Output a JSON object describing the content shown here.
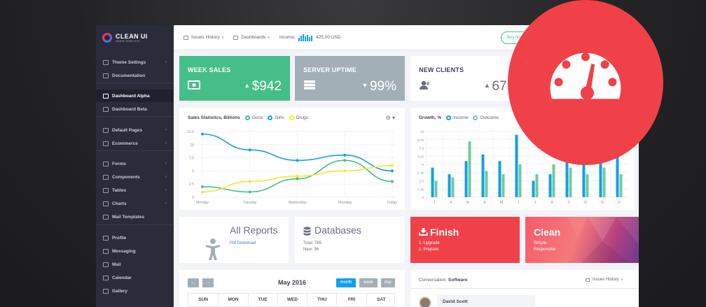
{
  "brand": {
    "title": "CLEAN UI",
    "subtitle": "ADMIN TEMPLATE"
  },
  "sidebar": {
    "items": [
      {
        "label": "Theme Settings",
        "arrow": true,
        "icon": "gear-icon"
      },
      {
        "label": "Documentation",
        "arrow": false,
        "icon": "book-icon"
      },
      {
        "label": "Dashboard Alpha",
        "arrow": false,
        "icon": "home-icon",
        "active": true
      },
      {
        "label": "Dashboard Beta",
        "arrow": false,
        "icon": "home-icon"
      },
      {
        "label": "Default Pages",
        "arrow": true,
        "icon": "pages-icon"
      },
      {
        "label": "Ecommerce",
        "arrow": true,
        "icon": "cart-icon"
      },
      {
        "label": "Forms",
        "arrow": true,
        "icon": "form-icon"
      },
      {
        "label": "Components",
        "arrow": true,
        "icon": "puzzle-icon"
      },
      {
        "label": "Tables",
        "arrow": true,
        "icon": "table-icon"
      },
      {
        "label": "Charts",
        "arrow": true,
        "icon": "chart-icon"
      },
      {
        "label": "Mail Templates",
        "arrow": false,
        "icon": "mail-icon"
      },
      {
        "label": "Profile",
        "arrow": false,
        "icon": "profile-icon"
      },
      {
        "label": "Messaging",
        "arrow": false,
        "icon": "message-icon"
      },
      {
        "label": "Mail",
        "arrow": false,
        "icon": "mail-icon"
      },
      {
        "label": "Calendar",
        "arrow": false,
        "icon": "calendar-icon"
      },
      {
        "label": "Gallery",
        "arrow": false,
        "icon": "gallery-icon"
      }
    ]
  },
  "topbar": {
    "issues": "Issues History",
    "dashboards": "Dashboards",
    "income_label": "Income:",
    "income_value": "425,00 USD",
    "buy_now": "Buy Now"
  },
  "stats": {
    "week_sales": {
      "title": "WEEK SALES",
      "value": "$942",
      "color": "#46be8a"
    },
    "server_uptime": {
      "title": "SERVER UPTIME",
      "value": "99%",
      "color": "#a3afb7"
    },
    "new_clients": {
      "title": "NEW CLIENTS",
      "value": "67"
    }
  },
  "sales_chart": {
    "title": "Sales Statistics, Billions",
    "legend": [
      {
        "name": "Guns",
        "color": "#46be8a"
      },
      {
        "name": "Girls",
        "color": "#13a0e4"
      },
      {
        "name": "Drugs",
        "color": "#f5e72c"
      }
    ]
  },
  "growth_chart": {
    "title": "Growth, %",
    "legend": [
      {
        "name": "Income",
        "color": "#13a0e4"
      },
      {
        "name": "Outcome",
        "color": "#6fcb9f"
      }
    ]
  },
  "chart_data": [
    {
      "type": "line",
      "title": "Sales Statistics, Billions",
      "categories": [
        "Monday",
        "Tuesday",
        "Wednesday",
        "Thursday",
        "Friday"
      ],
      "ylim": [
        0,
        12.5
      ],
      "yticks": [
        "0",
        "2.5",
        "5",
        "7.5",
        "10",
        "12.5"
      ],
      "series": [
        {
          "name": "Guns",
          "color": "#46be8a",
          "values": [
            2,
            1,
            3.5,
            7,
            3
          ]
        },
        {
          "name": "Girls",
          "color": "#13a0e4",
          "values": [
            12,
            9,
            7,
            8,
            5
          ]
        },
        {
          "name": "Drugs",
          "color": "#f5e72c",
          "values": [
            1,
            3,
            4,
            5,
            6
          ]
        }
      ]
    },
    {
      "type": "bar",
      "title": "Growth, %",
      "categories": [
        "J",
        "F",
        "M",
        "A",
        "M",
        "J",
        "J",
        "A",
        "S",
        "O",
        "N",
        "D"
      ],
      "ylim": [
        0,
        10
      ],
      "yticks": [
        "0",
        "1.25",
        "2.5",
        "3.75",
        "5",
        "6.25",
        "7.5",
        "8.75",
        "10"
      ],
      "series": [
        {
          "name": "Income",
          "color": "#13a0e4",
          "values": [
            4.5,
            3.5,
            5.5,
            6.5,
            5.5,
            9.5,
            2.5,
            3.5,
            7,
            6,
            8,
            8.5
          ]
        },
        {
          "name": "Outcome",
          "color": "#6fcb9f",
          "values": [
            2.5,
            3,
            8.5,
            4,
            3.5,
            5,
            3.5,
            5,
            4.5,
            3.5,
            4.5,
            3.5
          ]
        }
      ]
    }
  ],
  "reports": {
    "title": "All Reports",
    "link": "Pdf Download"
  },
  "databases": {
    "title": "Databases",
    "total": "Total: 765",
    "new": "New: 36"
  },
  "finish": {
    "title": "Finish",
    "items": [
      "1. Upgrade",
      "2. Prepare"
    ]
  },
  "clean": {
    "title": "Clean",
    "items": [
      "Simple",
      "Responsive"
    ]
  },
  "calendar": {
    "month": "May 2016",
    "views": [
      "month",
      "week",
      "day"
    ],
    "days": [
      "SUN",
      "MON",
      "TUE",
      "WED",
      "THU",
      "FRI",
      "SAT"
    ]
  },
  "conversation": {
    "label": "Conversation:",
    "topic": "Software",
    "history": "Issues History",
    "user": "David Scott"
  }
}
